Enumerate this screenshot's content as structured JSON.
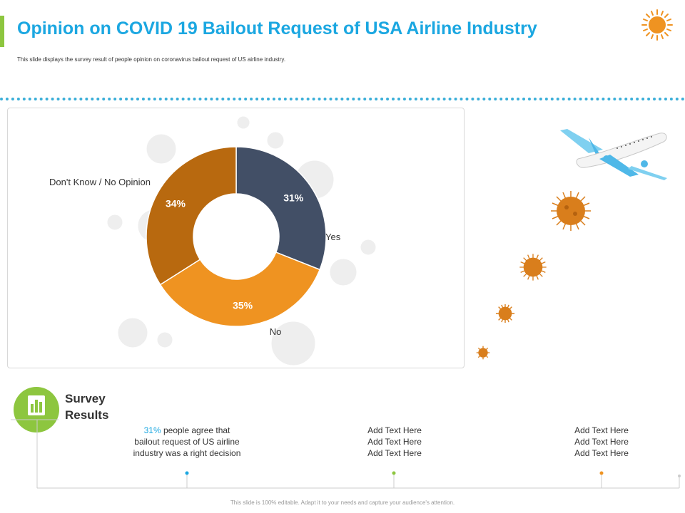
{
  "header": {
    "title": "Opinion on COVID 19 Bailout Request of USA Airline Industry",
    "subtitle": "This slide displays the survey result of people opinion on coronavirus bailout request of US airline industry."
  },
  "colors": {
    "title": "#1ba7e1",
    "accent_green": "#8dc63f",
    "slice_yes": "#424f66",
    "slice_no": "#ef9321",
    "slice_dont_know": "#b8690f"
  },
  "chart_data": {
    "type": "pie",
    "variant": "donut",
    "title": "",
    "categories": [
      "Yes",
      "No",
      "Don't Know / No Opinion"
    ],
    "values": [
      31,
      35,
      34
    ],
    "labels": [
      "31%",
      "35%",
      "34%"
    ],
    "colors": [
      "#424f66",
      "#ef9321",
      "#b8690f"
    ],
    "start_angle_deg": 0,
    "direction": "clockwise"
  },
  "survey": {
    "title_line1": "Survey",
    "title_line2": "Results",
    "items": [
      {
        "pct": "31%",
        "line1_rest": " people agree that",
        "line2": "bailout request of US airline",
        "line3": "industry  was a right decision",
        "dot_color": "#1ba7e1"
      },
      {
        "line1": "Add Text Here",
        "line2": "Add Text Here",
        "line3": "Add Text Here",
        "dot_color": "#8dc63f"
      },
      {
        "line1": "Add Text Here",
        "line2": "Add Text Here",
        "line3": "Add Text Here",
        "dot_color": "#ef9321"
      }
    ]
  },
  "footer": {
    "text": "This slide is 100% editable. Adapt it to your needs and capture your audience's attention."
  }
}
